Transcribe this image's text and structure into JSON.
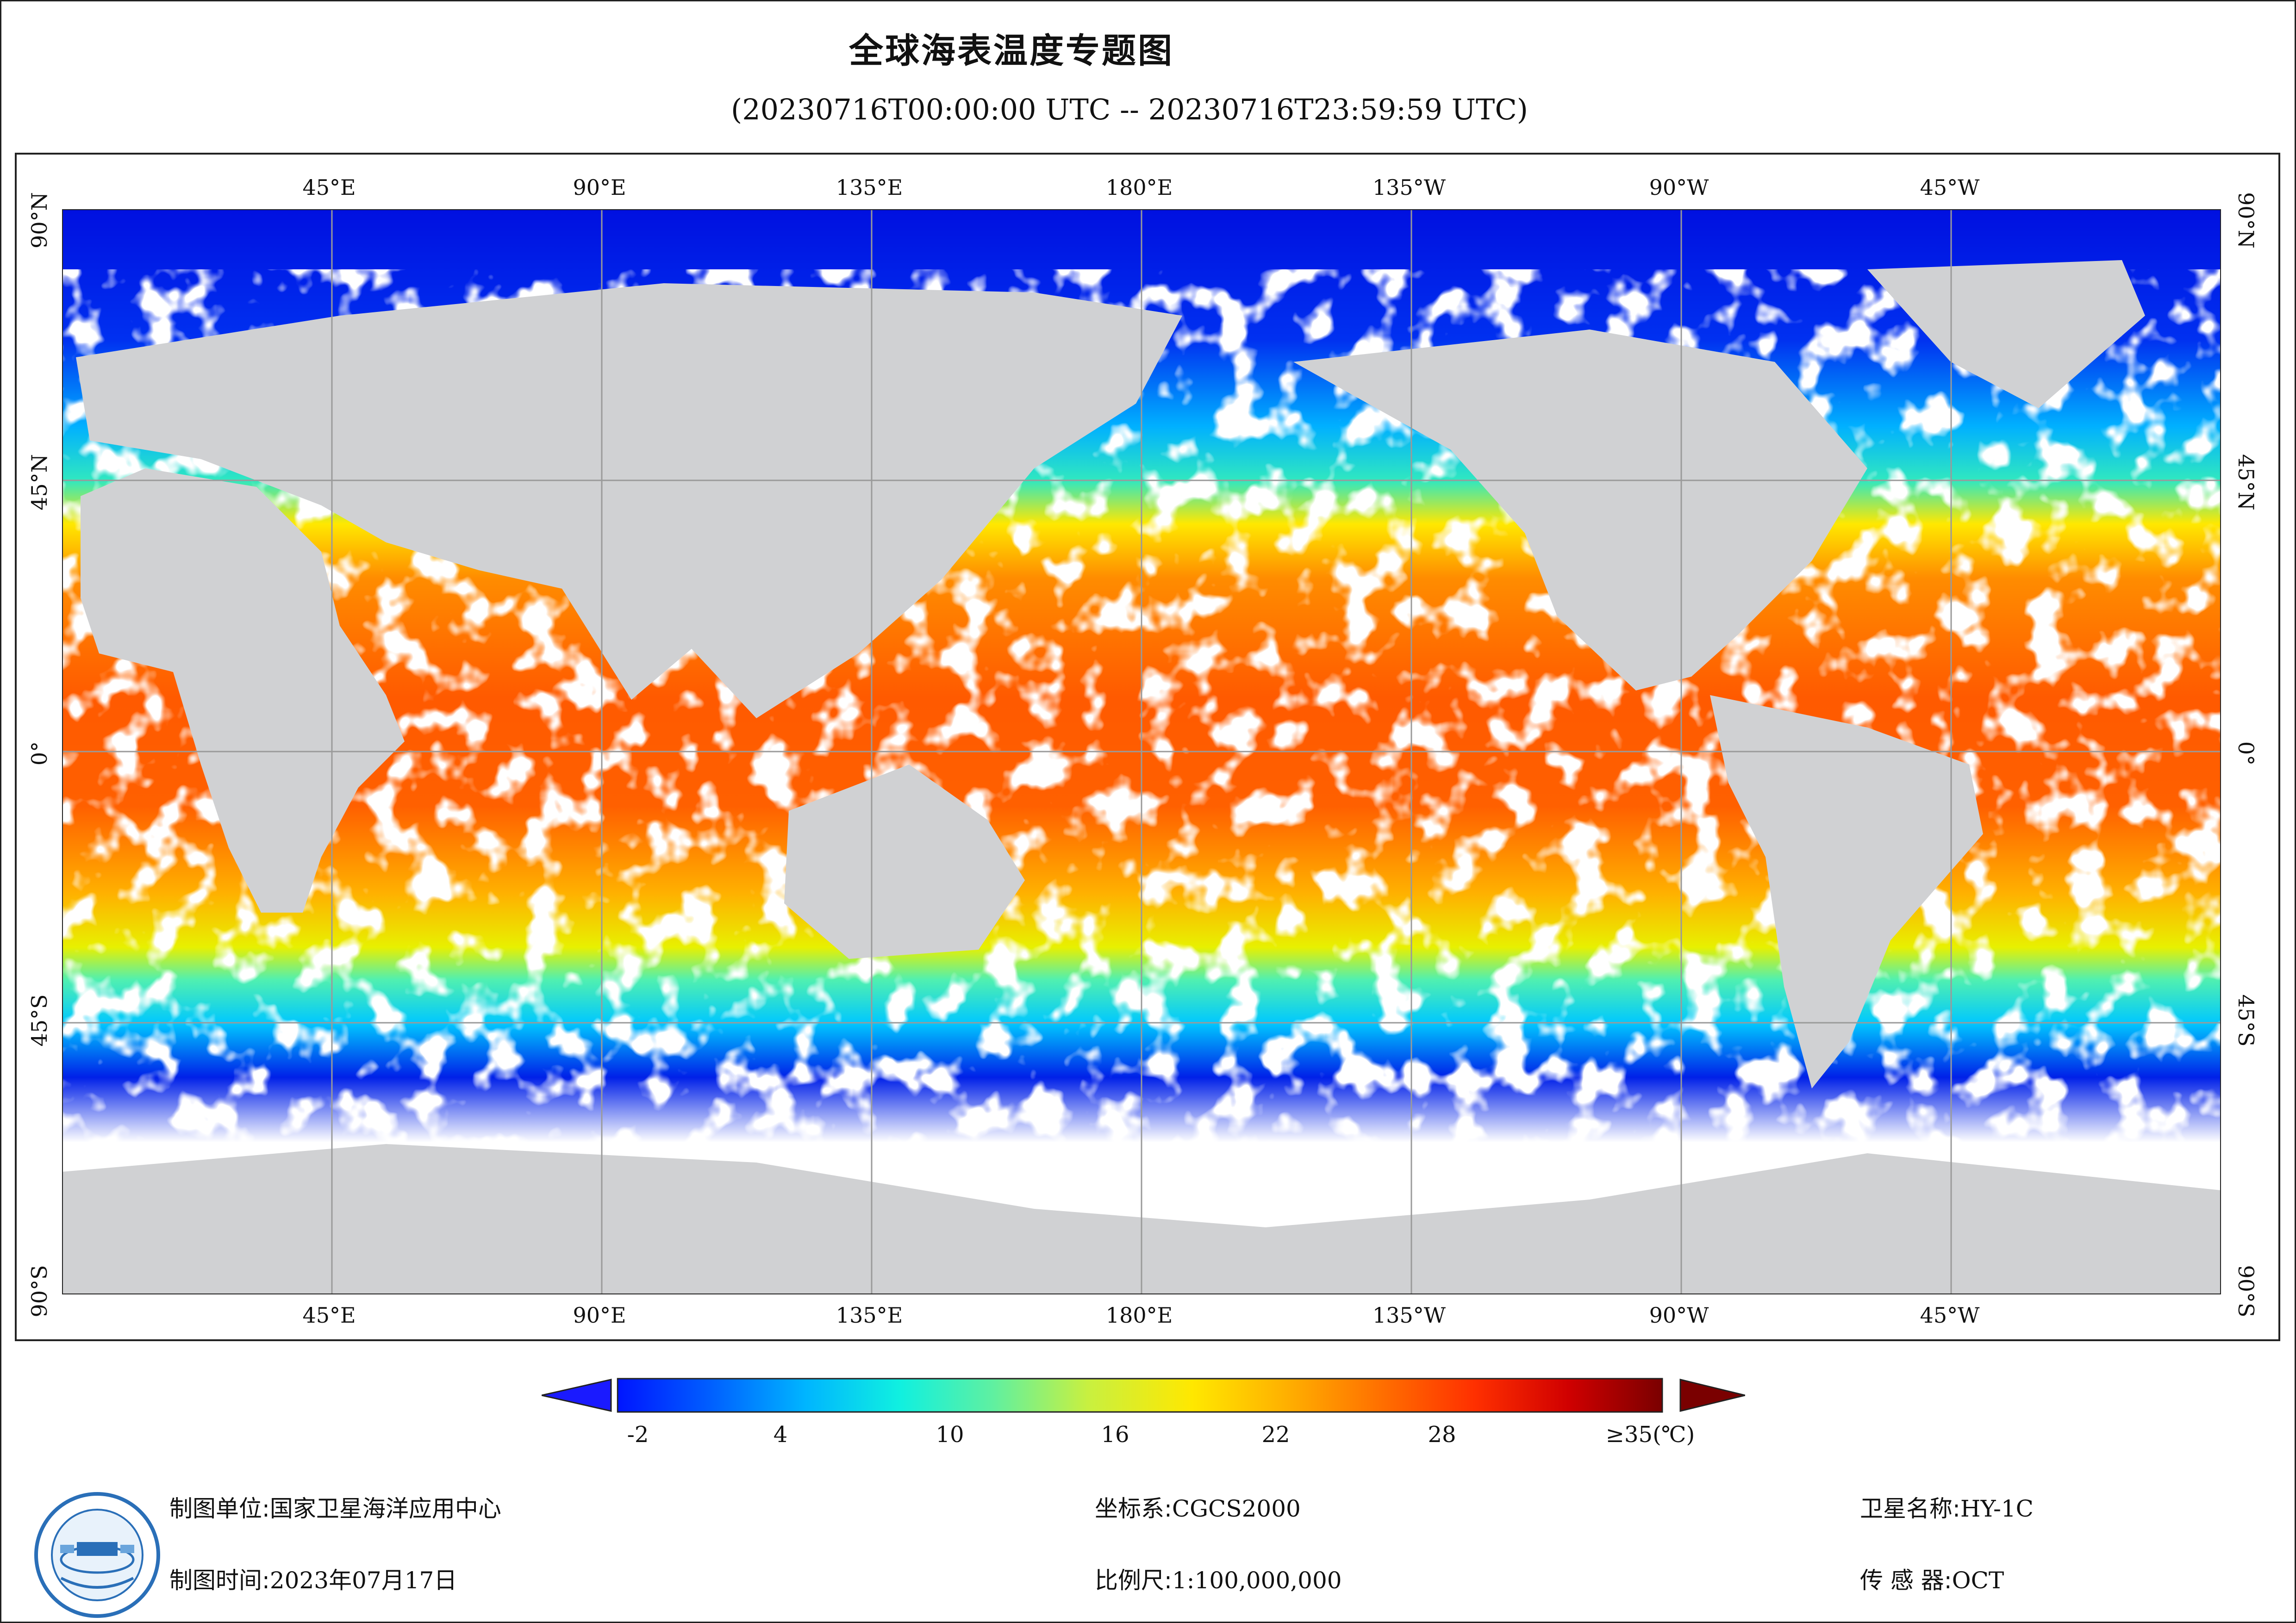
{
  "title": "全球海表温度专题图",
  "subtitle": "(20230716T00:00:00 UTC -- 20230716T23:59:59 UTC)",
  "map": {
    "projection": "equirectangular",
    "lon_range": [
      0,
      360
    ],
    "lat_range": [
      -90,
      90
    ],
    "land_color": "#d0d1d3",
    "no_data_color": "#ffffff",
    "top_lon_labels": [
      "45°E",
      "90°E",
      "135°E",
      "180°E",
      "135°W",
      "90°W",
      "45°W"
    ],
    "bottom_lon_labels": [
      "45°E",
      "90°E",
      "135°E",
      "180°E",
      "135°W",
      "90°W",
      "45°W"
    ],
    "left_lat_labels": [
      "90°N",
      "45°N",
      "0°",
      "45°S",
      "90°S"
    ],
    "right_lat_labels": [
      "90°N",
      "45°N",
      "0°",
      "45°S",
      "90°S"
    ]
  },
  "colorbar": {
    "tick_labels": [
      "-2",
      "4",
      "10",
      "16",
      "22",
      "28",
      "≥35(℃)"
    ],
    "tick_values": [
      -2,
      4,
      10,
      16,
      22,
      28,
      35
    ],
    "range": [
      -2,
      35
    ],
    "under_color": "#1a1aff",
    "over_color": "#7a0000",
    "colors": [
      "#0015ff",
      "#0060ff",
      "#00b5ff",
      "#10f0e0",
      "#60f0a0",
      "#c8f040",
      "#ffe800",
      "#ffb000",
      "#ff7000",
      "#ff3000",
      "#d00000",
      "#7a0000"
    ]
  },
  "footer": {
    "org_label": "制图单位:",
    "org_value": "国家卫星海洋应用中心",
    "date_label": "制图时间:",
    "date_value": "2023年07月17日",
    "coord_label": "坐标系:",
    "coord_value": "CGCS2000",
    "scale_label": "比例尺:",
    "scale_value": "1:100,000,000",
    "sat_label": "卫星名称:",
    "sat_value": "HY-1C",
    "sensor_label": "传 感 器:",
    "sensor_value": "OCT"
  }
}
